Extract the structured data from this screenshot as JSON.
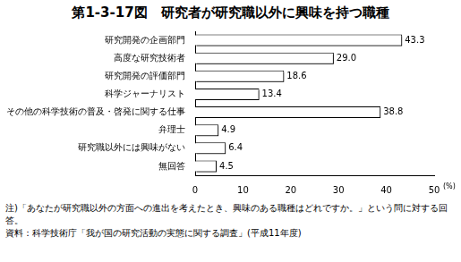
{
  "chart_data": {
    "type": "bar",
    "title": "第1-3-17図　研究者が研究職以外に興味を持つ職種",
    "categories": [
      "研究開発の企画部門",
      "高度な研究技術者",
      "研究開発の評価部門",
      "科学ジャーナリスト",
      "その他の科学技術の普及・啓発に関する仕事",
      "弁理士",
      "研究職以外には興味がない",
      "無回答"
    ],
    "values": [
      43.3,
      29.0,
      18.6,
      13.4,
      38.8,
      4.9,
      6.4,
      4.5
    ],
    "value_labels": [
      "43.3",
      "29.0",
      "18.6",
      "13.4",
      "38.8",
      "4.9",
      "6.4",
      "4.5"
    ],
    "color": "#ffffff",
    "orientation": "horizontal",
    "data_labels": true,
    "grid": false,
    "xlabel": "(%)",
    "xlim": [
      0,
      50
    ],
    "xticks": [
      0,
      10,
      20,
      30,
      40,
      50
    ],
    "annotations": [
      "注)「あなたが研究職以外の方面への進出を考えたとき、興味のある職種はどれですか。」という問に対する回答。",
      "資料：科学技術庁「我が国の研究活動の実態に関する調査」(平成11年度)"
    ]
  }
}
